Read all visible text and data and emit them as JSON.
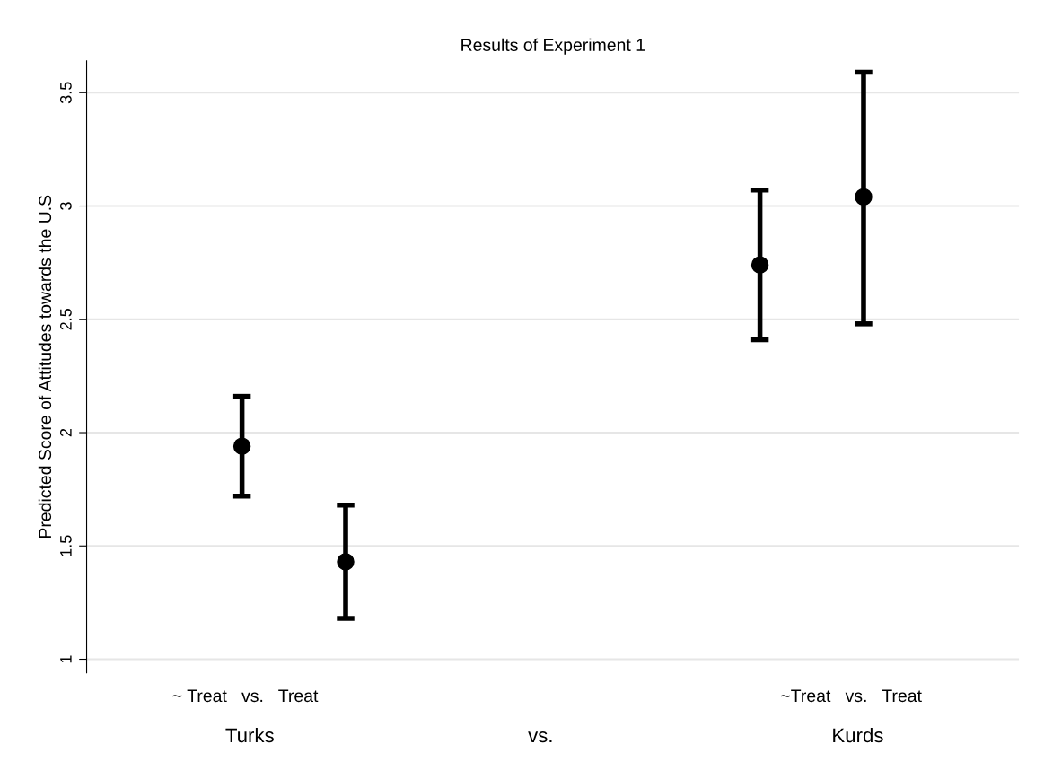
{
  "chart_data": {
    "type": "scatter",
    "title": "Results of Experiment 1",
    "ylabel": "Predicted Score of Attitudes towards the U.S",
    "categories": [
      null,
      null,
      null,
      null,
      null,
      null,
      null,
      null,
      null
    ],
    "series": [
      {
        "color": "#000000",
        "values": [
          null,
          1.94,
          1.43,
          null,
          null,
          null,
          2.74,
          3.04,
          null
        ],
        "errors": [
          null,
          [
            1.72,
            2.16
          ],
          [
            1.18,
            1.68
          ],
          null,
          null,
          null,
          [
            2.41,
            3.07
          ],
          [
            2.48,
            3.59
          ],
          null
        ]
      }
    ],
    "ylim": [
      0.94,
      3.64
    ],
    "yticks": [
      1,
      1.5,
      2,
      2.5,
      3,
      3.5
    ],
    "grid": "y",
    "marker": "circle",
    "tick_labels": "y",
    "annotations": [
      "~ Treat   vs.   Treat",
      "~Treat   vs.   Treat",
      "Turks",
      "vs.",
      "Kurds"
    ]
  }
}
